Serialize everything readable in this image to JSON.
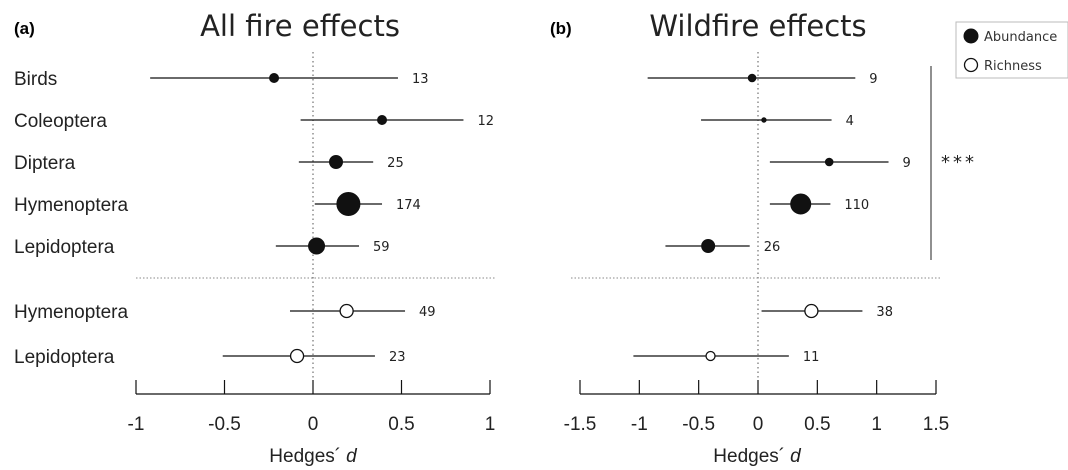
{
  "chart_data": [
    {
      "type": "scatter",
      "panel": "(a)",
      "title": "All fire effects",
      "xlabel": "Hedges´",
      "xlabel_italic": "d",
      "xlim": [
        -1,
        1
      ],
      "xticks": [
        -1,
        -0.5,
        0,
        0.5,
        1
      ],
      "xtick_labels": [
        "-1",
        "-0.5",
        "0",
        "0.5",
        "1"
      ],
      "reference_line": 0,
      "rows": [
        {
          "label": "Birds",
          "metric": "Abundance",
          "d": -0.22,
          "lo": -0.92,
          "hi": 0.48,
          "n": "13"
        },
        {
          "label": "Coleoptera",
          "metric": "Abundance",
          "d": 0.39,
          "lo": -0.07,
          "hi": 0.85,
          "n": "12"
        },
        {
          "label": "Diptera",
          "metric": "Abundance",
          "d": 0.13,
          "lo": -0.08,
          "hi": 0.34,
          "n": "25"
        },
        {
          "label": "Hymenoptera",
          "metric": "Abundance",
          "d": 0.2,
          "lo": 0.01,
          "hi": 0.39,
          "n": "174"
        },
        {
          "label": "Lepidoptera",
          "metric": "Abundance",
          "d": 0.02,
          "lo": -0.21,
          "hi": 0.26,
          "n": "59"
        },
        {
          "label": "Hymenoptera",
          "metric": "Richness",
          "d": 0.19,
          "lo": -0.13,
          "hi": 0.52,
          "n": "49"
        },
        {
          "label": "Lepidoptera",
          "metric": "Richness",
          "d": -0.09,
          "lo": -0.51,
          "hi": 0.35,
          "n": "23"
        }
      ]
    },
    {
      "type": "scatter",
      "panel": "(b)",
      "title": "Wildfire effects",
      "xlabel": "Hedges´",
      "xlabel_italic": "d",
      "xlim": [
        -1.5,
        1.5
      ],
      "xticks": [
        -1.5,
        -1,
        -0.5,
        0,
        0.5,
        1,
        1.5
      ],
      "xtick_labels": [
        "-1.5",
        "-1",
        "-0.5",
        "0",
        "0.5",
        "1",
        "1.5"
      ],
      "reference_line": 0,
      "significance": "***",
      "rows": [
        {
          "label": "Birds",
          "metric": "Abundance",
          "d": -0.05,
          "lo": -0.93,
          "hi": 0.82,
          "n": "9"
        },
        {
          "label": "Coleoptera",
          "metric": "Abundance",
          "d": 0.05,
          "lo": -0.48,
          "hi": 0.62,
          "n": "4"
        },
        {
          "label": "Diptera",
          "metric": "Abundance",
          "d": 0.6,
          "lo": 0.1,
          "hi": 1.1,
          "n": "9"
        },
        {
          "label": "Hymenoptera",
          "metric": "Abundance",
          "d": 0.36,
          "lo": 0.1,
          "hi": 0.61,
          "n": "110"
        },
        {
          "label": "Lepidoptera",
          "metric": "Abundance",
          "d": -0.42,
          "lo": -0.78,
          "hi": -0.07,
          "n": "26"
        },
        {
          "label": "Hymenoptera",
          "metric": "Richness",
          "d": 0.45,
          "lo": 0.03,
          "hi": 0.88,
          "n": "38"
        },
        {
          "label": "Lepidoptera",
          "metric": "Richness",
          "d": -0.4,
          "lo": -1.05,
          "hi": 0.26,
          "n": "11"
        }
      ]
    }
  ],
  "legend": [
    {
      "label": "Abundance",
      "filled": true
    },
    {
      "label": "Richness",
      "filled": false
    }
  ]
}
